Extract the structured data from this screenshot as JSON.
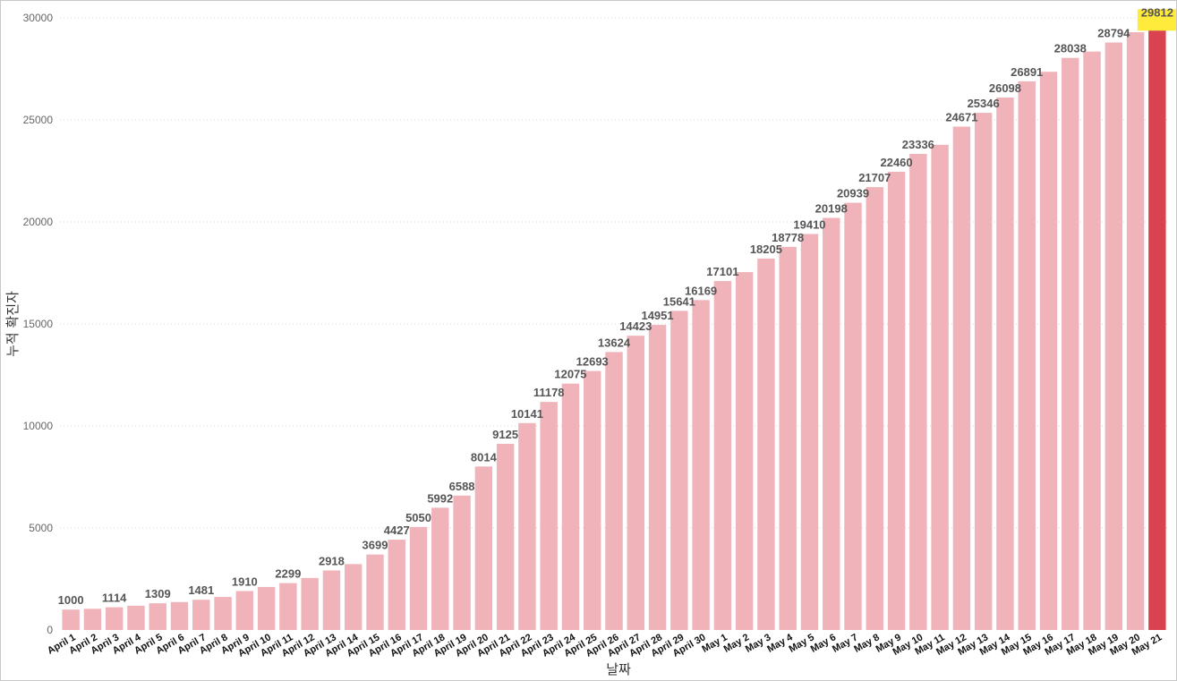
{
  "chart_data": {
    "type": "bar",
    "xlabel": "날짜",
    "ylabel": "누적 확진자",
    "ylim": [
      0,
      30000
    ],
    "yticks": [
      0,
      5000,
      10000,
      15000,
      20000,
      25000,
      30000
    ],
    "grid": true,
    "colors": {
      "bar": "#efb3b9",
      "highlight_bar": "#d9434f",
      "highlight_label_bg": "#ffeb3b"
    },
    "highlight_index": 50,
    "categories": [
      "April 1",
      "April 2",
      "April 3",
      "April 4",
      "April 5",
      "April 6",
      "April 7",
      "April 8",
      "April 9",
      "April 10",
      "April 11",
      "April 12",
      "April 13",
      "April 14",
      "April 15",
      "April 16",
      "April 17",
      "April 18",
      "April 19",
      "April 20",
      "April 21",
      "April 22",
      "April 23",
      "April 24",
      "April 25",
      "April 26",
      "April 27",
      "April 28",
      "April 29",
      "April 30",
      "May 1",
      "May 2",
      "May 3",
      "May 4",
      "May 5",
      "May 6",
      "May 7",
      "May 8",
      "May 9",
      "May 10",
      "May 11",
      "May 12",
      "May 13",
      "May 14",
      "May 15",
      "May 16",
      "May 17",
      "May 18",
      "May 19",
      "May 20",
      "May 21"
    ],
    "values": [
      1000,
      1040,
      1114,
      1190,
      1309,
      1370,
      1481,
      1620,
      1910,
      2110,
      2299,
      2550,
      2918,
      3230,
      3699,
      4427,
      5050,
      5992,
      6588,
      8014,
      9125,
      10141,
      11178,
      12075,
      12693,
      13624,
      14423,
      14951,
      15641,
      16169,
      17101,
      17540,
      18205,
      18778,
      19410,
      20198,
      20939,
      21707,
      22460,
      23336,
      23780,
      24671,
      25346,
      26098,
      26891,
      27360,
      28038,
      28350,
      28794,
      29300,
      29812
    ],
    "labeled_indices": [
      0,
      2,
      4,
      6,
      8,
      10,
      12,
      14,
      15,
      16,
      17,
      18,
      19,
      20,
      21,
      22,
      23,
      24,
      25,
      26,
      27,
      28,
      29,
      30,
      32,
      33,
      34,
      35,
      36,
      37,
      38,
      39,
      41,
      42,
      43,
      44,
      46,
      48,
      50
    ]
  }
}
